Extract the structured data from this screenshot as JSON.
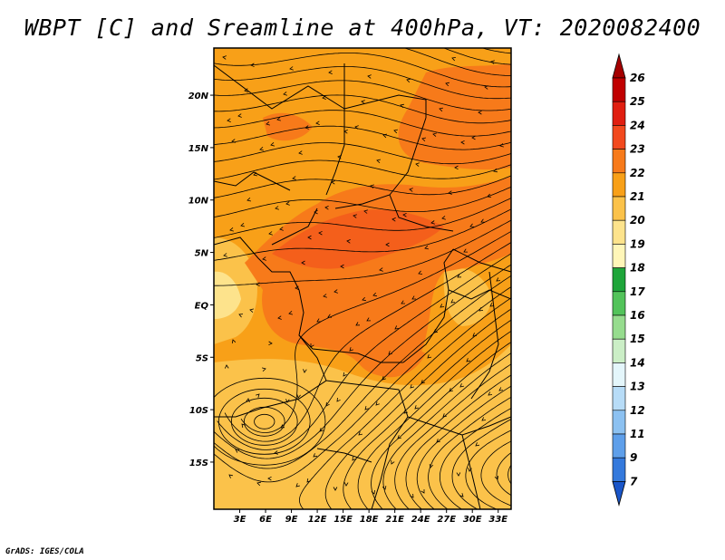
{
  "map": {
    "title": "WBPT [C] and Sreamline at 400hPa, VT: 2020082400",
    "credit": "GrADS: IGES/COLA",
    "lat_ticks": [
      {
        "label": "20N",
        "value": 20
      },
      {
        "label": "15N",
        "value": 15
      },
      {
        "label": "10N",
        "value": 10
      },
      {
        "label": "5N",
        "value": 5
      },
      {
        "label": "EQ",
        "value": 0
      },
      {
        "label": "5S",
        "value": -5
      },
      {
        "label": "10S",
        "value": -10
      },
      {
        "label": "15S",
        "value": -15
      }
    ],
    "lon_ticks": [
      {
        "label": "3E",
        "value": 3
      },
      {
        "label": "6E",
        "value": 6
      },
      {
        "label": "9E",
        "value": 9
      },
      {
        "label": "12E",
        "value": 12
      },
      {
        "label": "15E",
        "value": 15
      },
      {
        "label": "18E",
        "value": 18
      },
      {
        "label": "21E",
        "value": 21
      },
      {
        "label": "24E",
        "value": 24
      },
      {
        "label": "27E",
        "value": 27
      },
      {
        "label": "30E",
        "value": 30
      },
      {
        "label": "33E",
        "value": 33
      }
    ],
    "lon_range": [
      0,
      34.5
    ],
    "lat_range": [
      -19.5,
      24.5
    ]
  },
  "colorbar": {
    "levels": [
      {
        "label": "26",
        "color": "#a50000"
      },
      {
        "label": "25",
        "color": "#c00000"
      },
      {
        "label": "24",
        "color": "#e01e10"
      },
      {
        "label": "23",
        "color": "#f2491d"
      },
      {
        "label": "22",
        "color": "#f77a1a"
      },
      {
        "label": "21",
        "color": "#f8a018"
      },
      {
        "label": "20",
        "color": "#fbc24a"
      },
      {
        "label": "19",
        "color": "#fde38c"
      },
      {
        "label": "18",
        "color": "#fff6b8"
      },
      {
        "label": "17",
        "color": "#1ea53a"
      },
      {
        "label": "16",
        "color": "#52c35a"
      },
      {
        "label": "15",
        "color": "#96dc8e"
      },
      {
        "label": "14",
        "color": "#cbeec6"
      },
      {
        "label": "13",
        "color": "#e4f6fb"
      },
      {
        "label": "12",
        "color": "#b7dcf7"
      },
      {
        "label": "11",
        "color": "#8cc1f1"
      },
      {
        "label": "9",
        "color": "#5e9fea"
      },
      {
        "label": "7",
        "color": "#3479dc"
      }
    ],
    "bottom_color": "#1a56c9"
  }
}
